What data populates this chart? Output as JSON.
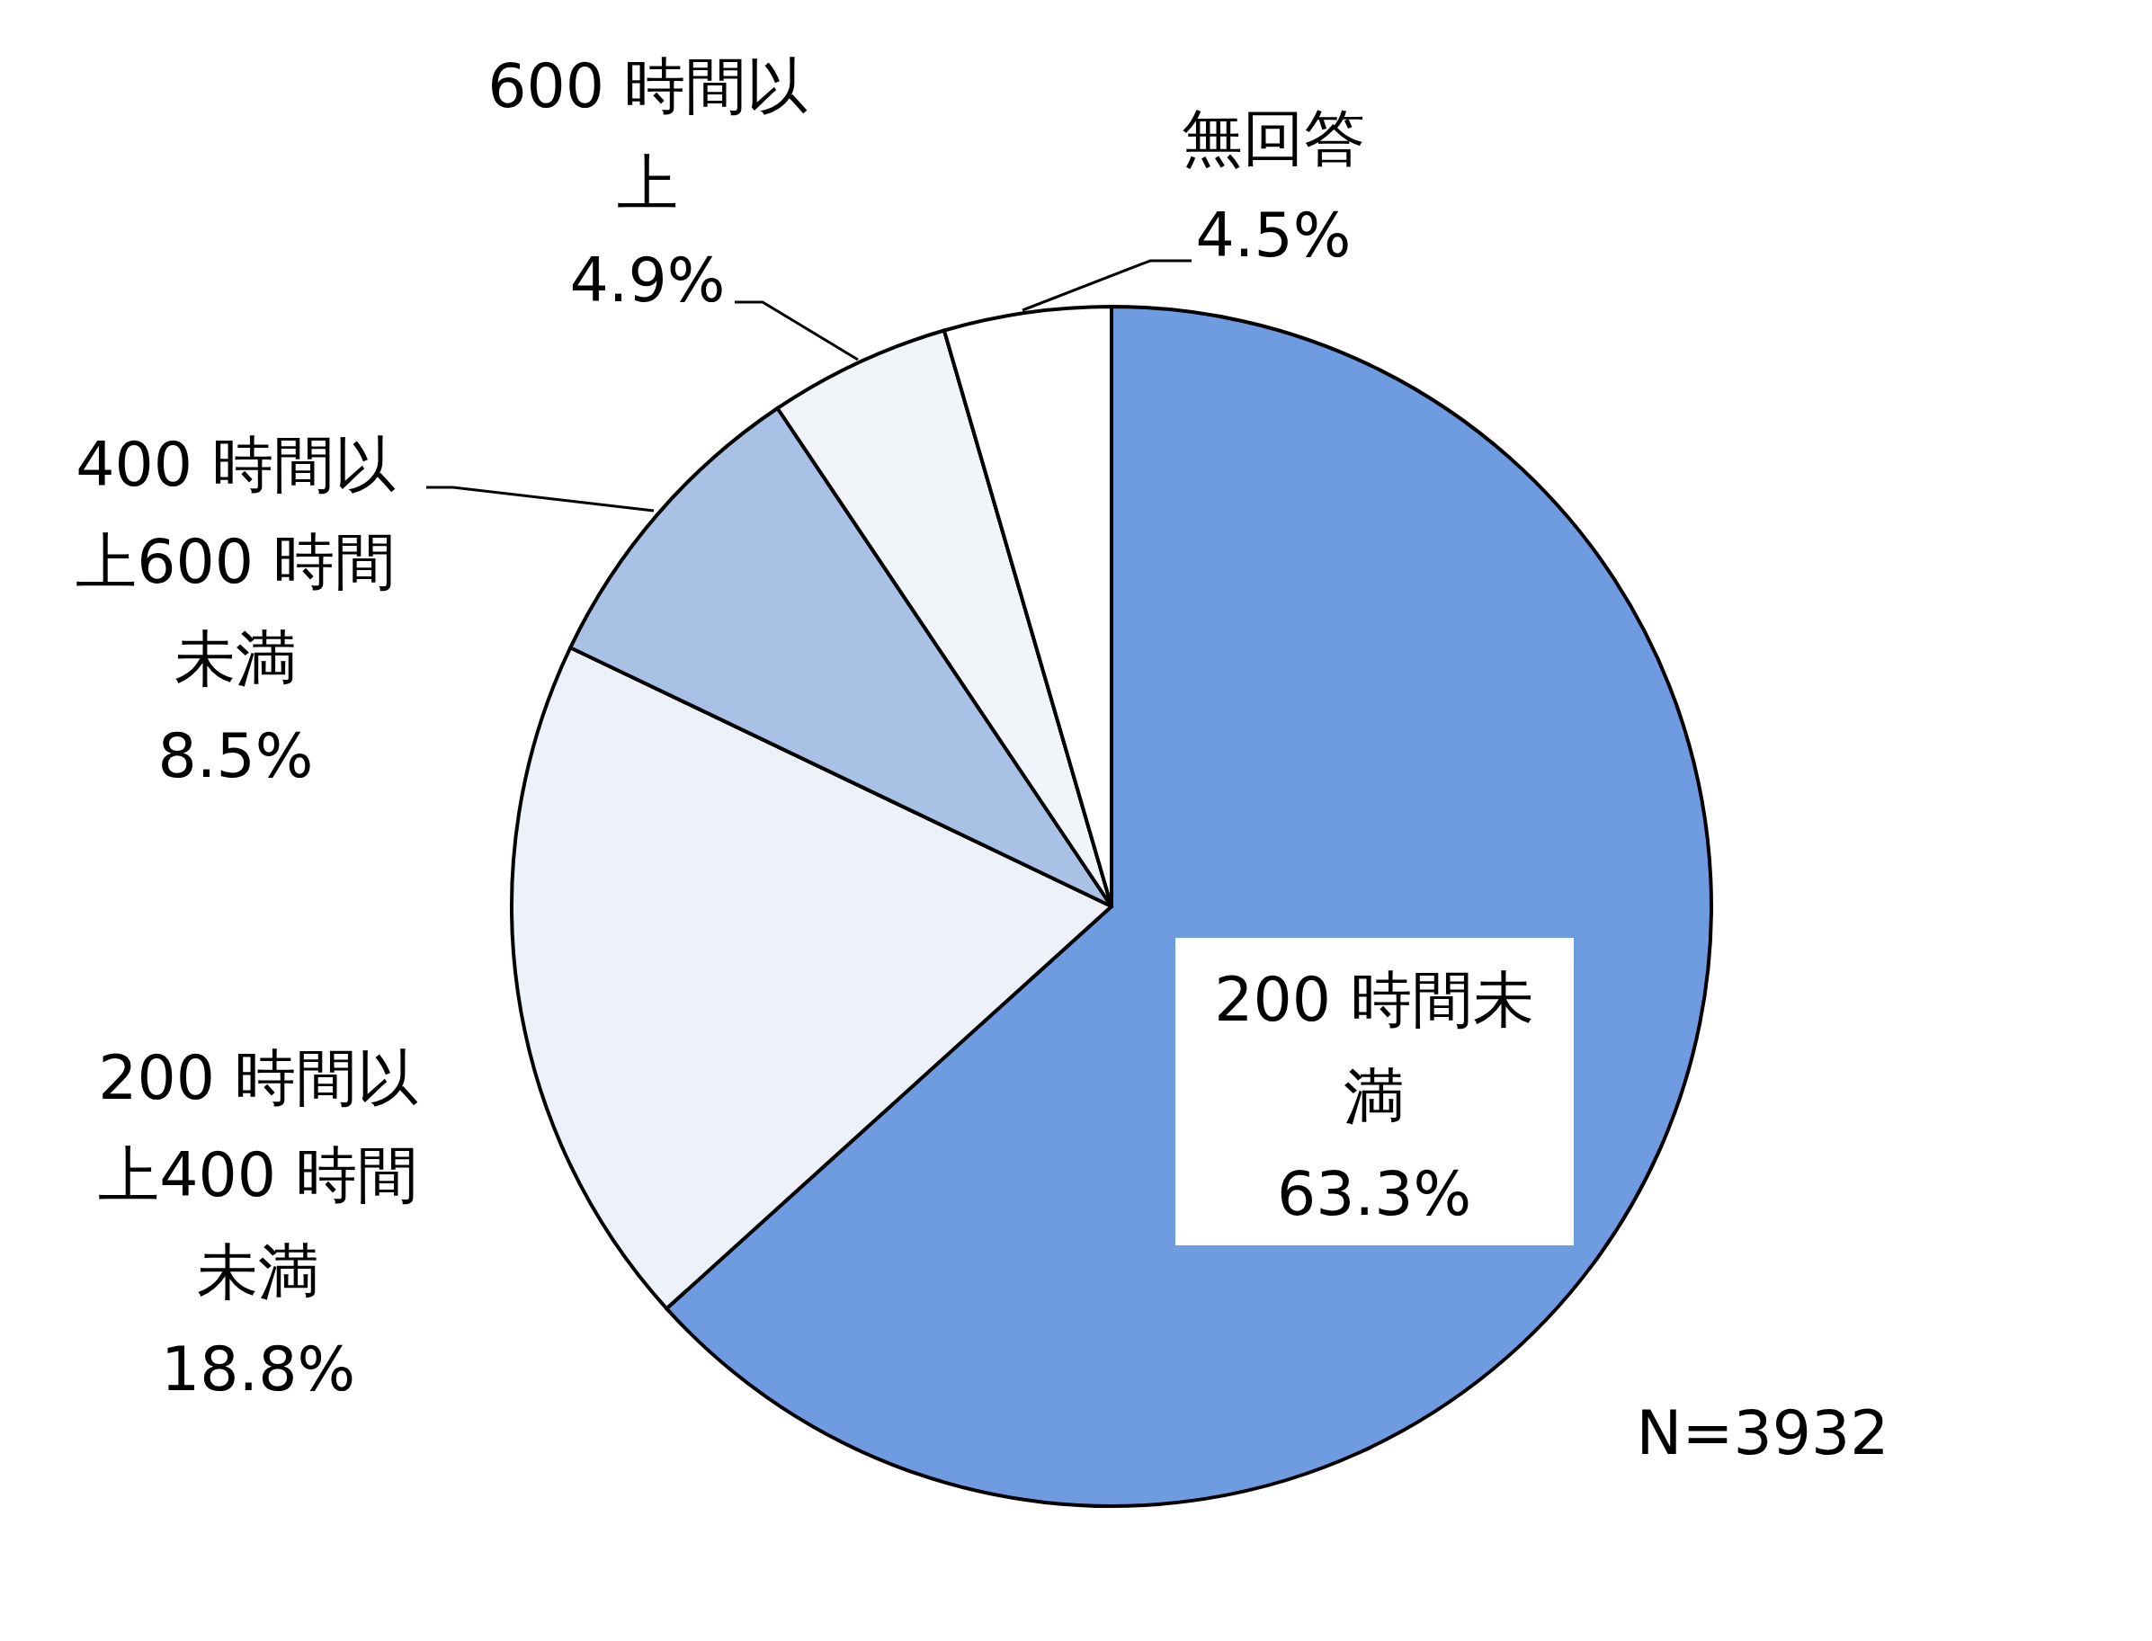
{
  "chart_data": {
    "type": "pie",
    "categories": [
      "200 時間未満",
      "200 時間以上400 時間未満",
      "400 時間以上600 時間未満",
      "600 時間以上",
      "無回答"
    ],
    "values": [
      63.3,
      18.8,
      8.5,
      4.9,
      4.5
    ],
    "colors": [
      "#6f9be0",
      "#edf2fa",
      "#aac1e6",
      "#f1f4f9",
      "#ffffff"
    ],
    "value_labels": [
      "63.3%",
      "18.8%",
      "8.5%",
      "4.9%",
      "4.5%"
    ],
    "annotations": [
      "N=3932"
    ]
  }
}
